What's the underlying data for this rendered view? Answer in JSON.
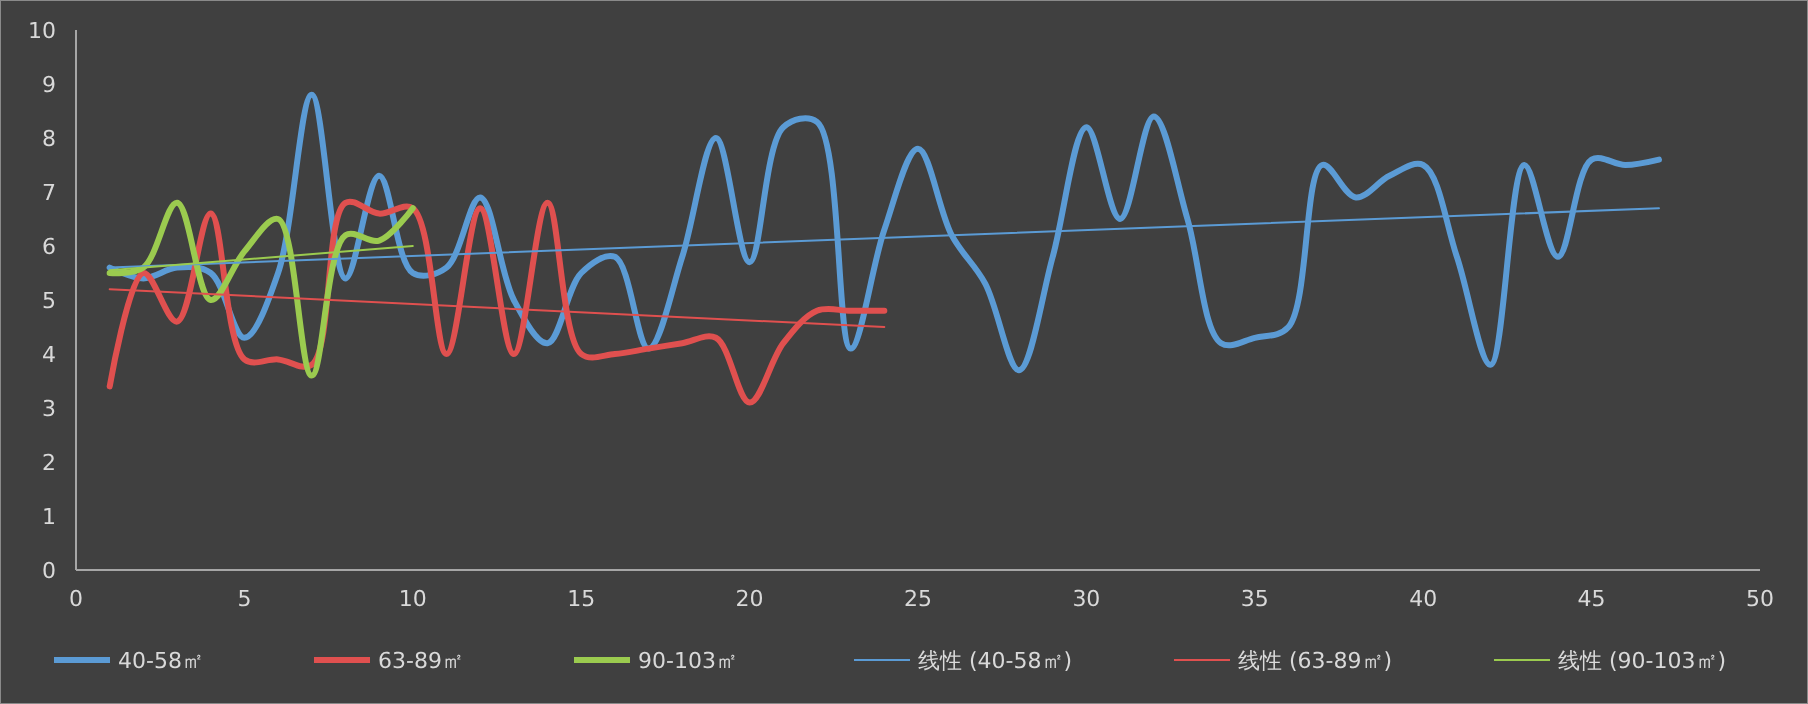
{
  "chart_data": {
    "type": "line",
    "xlim": [
      0,
      50
    ],
    "xticks": [
      0,
      5,
      10,
      15,
      20,
      25,
      30,
      35,
      40,
      45,
      50
    ],
    "ylim": [
      0,
      10
    ],
    "yticks": [
      0,
      1,
      2,
      3,
      4,
      5,
      6,
      7,
      8,
      9,
      10
    ],
    "grid": false,
    "legend": "bottom",
    "marker": "none",
    "series": [
      {
        "name": "40-58㎡",
        "color": "#5b9bd5",
        "x": [
          1,
          2,
          3,
          4,
          5,
          6,
          7,
          8,
          9,
          10,
          11,
          12,
          13,
          14,
          15,
          16,
          17,
          18,
          19,
          20,
          21,
          22,
          23,
          24,
          25,
          26,
          27,
          28,
          29,
          30,
          31,
          32,
          33,
          34,
          35,
          36,
          37,
          38,
          39,
          40,
          41,
          42,
          43,
          44,
          45,
          46,
          47
        ],
        "values": [
          5.6,
          5.4,
          5.6,
          5.5,
          4.3,
          5.5,
          8.8,
          5.4,
          7.3,
          5.5,
          5.6,
          6.9,
          5.0,
          4.2,
          5.5,
          5.8,
          4.1,
          5.8,
          8.0,
          5.7,
          8.2,
          8.3,
          4.1,
          6.3,
          7.8,
          6.2,
          5.3,
          3.7,
          5.8,
          8.2,
          6.5,
          8.4,
          6.5,
          4.2,
          4.3,
          4.5,
          7.5,
          6.9,
          7.3,
          7.5,
          5.8,
          3.8,
          7.5,
          5.8,
          7.6,
          7.5,
          7.6
        ]
      },
      {
        "name": "63-89㎡",
        "color": "#e0504f",
        "x": [
          1,
          2,
          3,
          4,
          5,
          6,
          7,
          8,
          9,
          10,
          11,
          12,
          13,
          14,
          15,
          16,
          17,
          18,
          19,
          20,
          21,
          22,
          23,
          24
        ],
        "values": [
          3.4,
          5.5,
          4.6,
          6.6,
          3.9,
          3.9,
          3.8,
          6.8,
          6.6,
          6.7,
          4.0,
          6.7,
          4.0,
          6.8,
          4.0,
          4.0,
          4.1,
          4.2,
          4.3,
          3.1,
          4.2,
          4.8,
          4.8,
          4.8
        ]
      },
      {
        "name": "90-103㎡",
        "color": "#9bcb4f",
        "x": [
          1,
          2,
          3,
          4,
          5,
          6,
          7,
          8,
          9,
          10
        ],
        "values": [
          5.5,
          5.6,
          6.8,
          5.0,
          5.9,
          6.5,
          3.6,
          6.2,
          6.1,
          6.7
        ]
      },
      {
        "name": "线性 (40-58㎡)",
        "color": "#5b9bd5",
        "type": "line",
        "x": [
          1,
          47
        ],
        "values": [
          5.6,
          6.7
        ]
      },
      {
        "name": "线性 (63-89㎡)",
        "color": "#e0504f",
        "type": "line",
        "x": [
          1,
          24
        ],
        "values": [
          5.2,
          4.5
        ]
      },
      {
        "name": "线性 (90-103㎡)",
        "color": "#9bcb4f",
        "type": "line",
        "x": [
          1,
          10
        ],
        "values": [
          5.55,
          6.0
        ]
      }
    ]
  }
}
